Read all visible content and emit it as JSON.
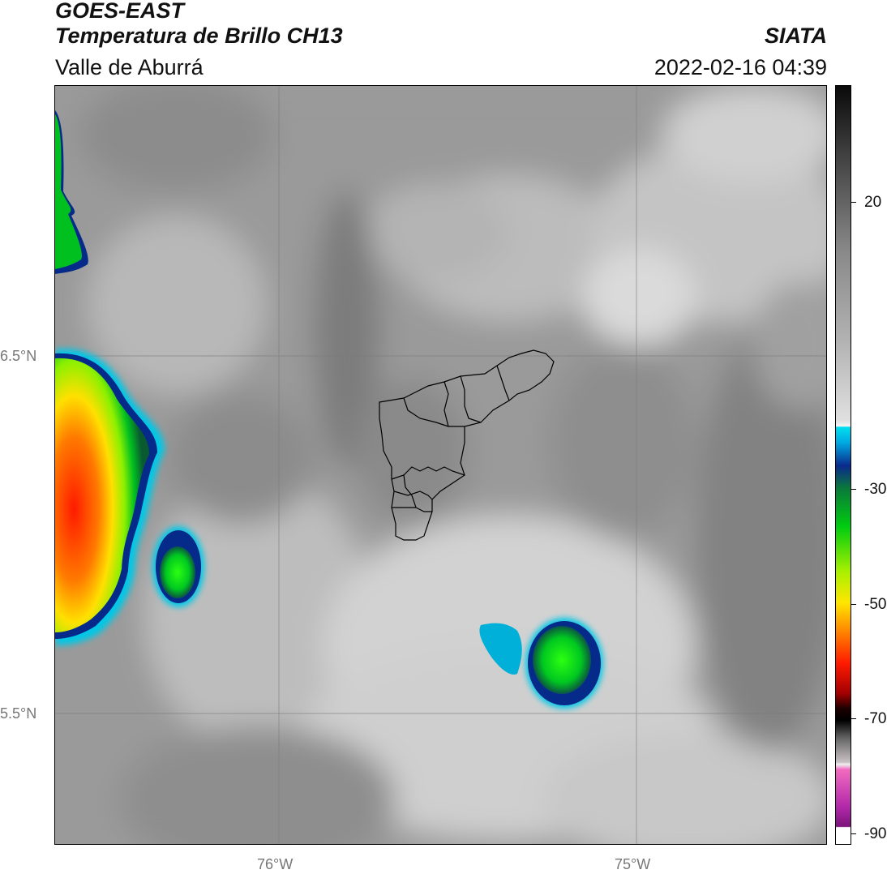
{
  "header": {
    "satellite": "GOES-EAST",
    "product": "Temperatura de Brillo CH13",
    "region": "Valle de Aburrá",
    "agency": "SIATA",
    "datetime": "2022-02-16 04:39"
  },
  "map": {
    "lat_labels": [
      "6.5°N",
      "5.5°N"
    ],
    "lon_labels": [
      "76°W",
      "75°W"
    ],
    "features": {
      "base_gray": "#9a9a9a",
      "convective_core_colors": [
        "#ff2a00",
        "#ff8a00",
        "#ffe600",
        "#9cff00",
        "#00cc22",
        "#0a7a3a",
        "#062e8a",
        "#00b8e6"
      ]
    }
  },
  "colorbar": {
    "ticks": [
      {
        "label": "20",
        "value": 20
      },
      {
        "label": "-30",
        "value": -30
      },
      {
        "label": "-50",
        "value": -50
      },
      {
        "label": "-70",
        "value": -70
      },
      {
        "label": "-90",
        "value": -90
      }
    ],
    "colors": {
      "warm_top": "#111111",
      "gray_mid": "#8c8c8c",
      "white": "#f4f4f4",
      "cyan": "#00d8ee",
      "blue": "#0a2a8c",
      "green": "#10c020",
      "yellow": "#ffe600",
      "orange": "#ff8000",
      "red": "#ff0000",
      "dark": "#1a0000",
      "pink": "#f060c0",
      "purple": "#7a147a"
    }
  }
}
